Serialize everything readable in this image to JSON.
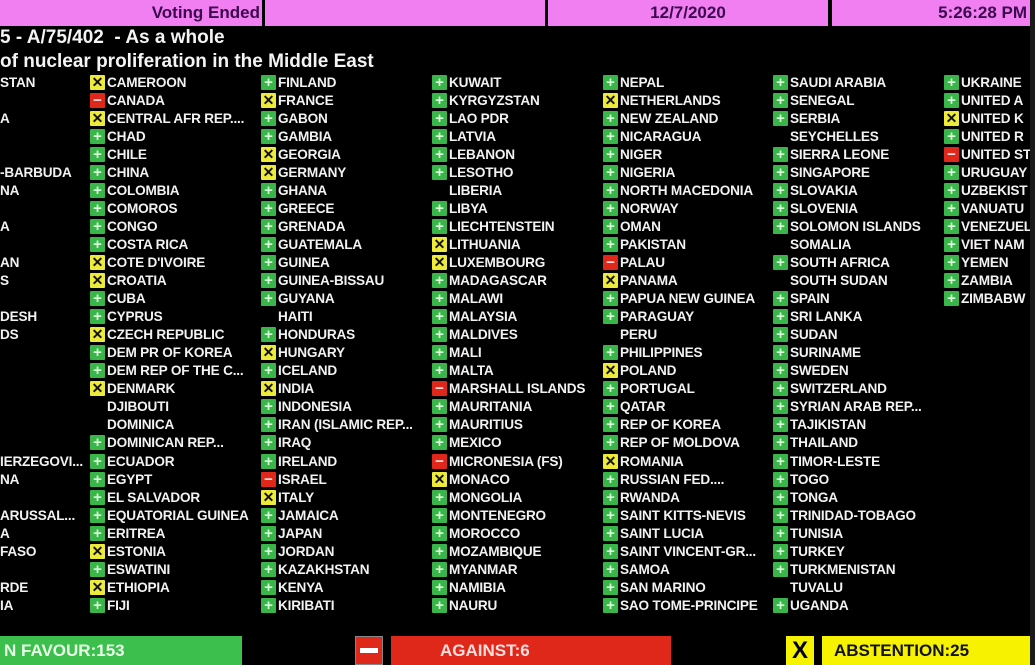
{
  "header": {
    "status": "Voting Ended",
    "middle": "",
    "date": "12/7/2020",
    "time": "5:26:28 PM"
  },
  "title": {
    "line1": "5 - A/75/402  - As a whole",
    "line2": "of nuclear proliferation in the Middle East"
  },
  "colors": {
    "header": "#f27ff2",
    "yes": "#39b54a",
    "no": "#e0281a",
    "abstain": "#eeea3a"
  },
  "vote_icons": {
    "y": "plus-icon",
    "n": "minus-icon",
    "a": "x-icon"
  },
  "columns": [
    [
      {
        "name": "STAN",
        "vote": ""
      },
      {
        "name": "",
        "vote": ""
      },
      {
        "name": "A",
        "vote": ""
      },
      {
        "name": "",
        "vote": ""
      },
      {
        "name": "",
        "vote": ""
      },
      {
        "name": "-BARBUDA",
        "vote": ""
      },
      {
        "name": "NA",
        "vote": ""
      },
      {
        "name": "",
        "vote": ""
      },
      {
        "name": "A",
        "vote": ""
      },
      {
        "name": "",
        "vote": ""
      },
      {
        "name": "AN",
        "vote": ""
      },
      {
        "name": "S",
        "vote": ""
      },
      {
        "name": "",
        "vote": ""
      },
      {
        "name": "DESH",
        "vote": ""
      },
      {
        "name": "DS",
        "vote": ""
      },
      {
        "name": "",
        "vote": ""
      },
      {
        "name": "",
        "vote": ""
      },
      {
        "name": "",
        "vote": ""
      },
      {
        "name": "",
        "vote": ""
      },
      {
        "name": "",
        "vote": ""
      },
      {
        "name": "",
        "vote": ""
      },
      {
        "name": "IERZEGOVI...",
        "vote": ""
      },
      {
        "name": "NA",
        "vote": ""
      },
      {
        "name": "",
        "vote": ""
      },
      {
        "name": "ARUSSAL...",
        "vote": ""
      },
      {
        "name": "A",
        "vote": ""
      },
      {
        "name": "FASO",
        "vote": ""
      },
      {
        "name": "",
        "vote": ""
      },
      {
        "name": "RDE",
        "vote": ""
      },
      {
        "name": "IA",
        "vote": ""
      }
    ],
    [
      {
        "name": "CAMEROON",
        "vote": "a"
      },
      {
        "name": "CANADA",
        "vote": "n"
      },
      {
        "name": "CENTRAL AFR REP....",
        "vote": "a"
      },
      {
        "name": "CHAD",
        "vote": "y"
      },
      {
        "name": "CHILE",
        "vote": "y"
      },
      {
        "name": "CHINA",
        "vote": "y"
      },
      {
        "name": "COLOMBIA",
        "vote": "y"
      },
      {
        "name": "COMOROS",
        "vote": "y"
      },
      {
        "name": "CONGO",
        "vote": "y"
      },
      {
        "name": "COSTA RICA",
        "vote": "y"
      },
      {
        "name": "COTE D'IVOIRE",
        "vote": "a"
      },
      {
        "name": "CROATIA",
        "vote": "a"
      },
      {
        "name": "CUBA",
        "vote": "y"
      },
      {
        "name": "CYPRUS",
        "vote": "y"
      },
      {
        "name": "CZECH REPUBLIC",
        "vote": "a"
      },
      {
        "name": "DEM PR OF KOREA",
        "vote": "y"
      },
      {
        "name": "DEM REP OF THE C...",
        "vote": "y"
      },
      {
        "name": "DENMARK",
        "vote": "a"
      },
      {
        "name": "DJIBOUTI",
        "vote": ""
      },
      {
        "name": "DOMINICA",
        "vote": ""
      },
      {
        "name": "DOMINICAN REP...",
        "vote": "y"
      },
      {
        "name": "ECUADOR",
        "vote": "y"
      },
      {
        "name": "EGYPT",
        "vote": "y"
      },
      {
        "name": "EL SALVADOR",
        "vote": "y"
      },
      {
        "name": "EQUATORIAL GUINEA",
        "vote": "y"
      },
      {
        "name": "ERITREA",
        "vote": "y"
      },
      {
        "name": "ESTONIA",
        "vote": "a"
      },
      {
        "name": "ESWATINI",
        "vote": "y"
      },
      {
        "name": "ETHIOPIA",
        "vote": "a"
      },
      {
        "name": "FIJI",
        "vote": "y"
      }
    ],
    [
      {
        "name": "FINLAND",
        "vote": "y"
      },
      {
        "name": "FRANCE",
        "vote": "a"
      },
      {
        "name": "GABON",
        "vote": "y"
      },
      {
        "name": "GAMBIA",
        "vote": "y"
      },
      {
        "name": "GEORGIA",
        "vote": "a"
      },
      {
        "name": "GERMANY",
        "vote": "a"
      },
      {
        "name": "GHANA",
        "vote": "y"
      },
      {
        "name": "GREECE",
        "vote": "y"
      },
      {
        "name": "GRENADA",
        "vote": "y"
      },
      {
        "name": "GUATEMALA",
        "vote": "y"
      },
      {
        "name": "GUINEA",
        "vote": "y"
      },
      {
        "name": "GUINEA-BISSAU",
        "vote": "y"
      },
      {
        "name": "GUYANA",
        "vote": "y"
      },
      {
        "name": "HAITI",
        "vote": ""
      },
      {
        "name": "HONDURAS",
        "vote": "y"
      },
      {
        "name": "HUNGARY",
        "vote": "a"
      },
      {
        "name": "ICELAND",
        "vote": "y"
      },
      {
        "name": "INDIA",
        "vote": "a"
      },
      {
        "name": "INDONESIA",
        "vote": "y"
      },
      {
        "name": "IRAN (ISLAMIC REP...",
        "vote": "y"
      },
      {
        "name": "IRAQ",
        "vote": "y"
      },
      {
        "name": "IRELAND",
        "vote": "y"
      },
      {
        "name": "ISRAEL",
        "vote": "n"
      },
      {
        "name": "ITALY",
        "vote": "a"
      },
      {
        "name": "JAMAICA",
        "vote": "y"
      },
      {
        "name": "JAPAN",
        "vote": "y"
      },
      {
        "name": "JORDAN",
        "vote": "y"
      },
      {
        "name": "KAZAKHSTAN",
        "vote": "y"
      },
      {
        "name": "KENYA",
        "vote": "y"
      },
      {
        "name": "KIRIBATI",
        "vote": "y"
      }
    ],
    [
      {
        "name": "KUWAIT",
        "vote": "y"
      },
      {
        "name": "KYRGYZSTAN",
        "vote": "y"
      },
      {
        "name": "LAO PDR",
        "vote": "y"
      },
      {
        "name": "LATVIA",
        "vote": "y"
      },
      {
        "name": "LEBANON",
        "vote": "y"
      },
      {
        "name": "LESOTHO",
        "vote": "y"
      },
      {
        "name": "LIBERIA",
        "vote": ""
      },
      {
        "name": "LIBYA",
        "vote": "y"
      },
      {
        "name": "LIECHTENSTEIN",
        "vote": "y"
      },
      {
        "name": "LITHUANIA",
        "vote": "a"
      },
      {
        "name": "LUXEMBOURG",
        "vote": "a"
      },
      {
        "name": "MADAGASCAR",
        "vote": "y"
      },
      {
        "name": "MALAWI",
        "vote": "y"
      },
      {
        "name": "MALAYSIA",
        "vote": "y"
      },
      {
        "name": "MALDIVES",
        "vote": "y"
      },
      {
        "name": "MALI",
        "vote": "y"
      },
      {
        "name": "MALTA",
        "vote": "y"
      },
      {
        "name": "MARSHALL ISLANDS",
        "vote": "n"
      },
      {
        "name": "MAURITANIA",
        "vote": "y"
      },
      {
        "name": "MAURITIUS",
        "vote": "y"
      },
      {
        "name": "MEXICO",
        "vote": "y"
      },
      {
        "name": "MICRONESIA (FS)",
        "vote": "n"
      },
      {
        "name": "MONACO",
        "vote": "a"
      },
      {
        "name": "MONGOLIA",
        "vote": "y"
      },
      {
        "name": "MONTENEGRO",
        "vote": "y"
      },
      {
        "name": "MOROCCO",
        "vote": "y"
      },
      {
        "name": "MOZAMBIQUE",
        "vote": "y"
      },
      {
        "name": "MYANMAR",
        "vote": "y"
      },
      {
        "name": "NAMIBIA",
        "vote": "y"
      },
      {
        "name": "NAURU",
        "vote": "y"
      }
    ],
    [
      {
        "name": "NEPAL",
        "vote": "y"
      },
      {
        "name": "NETHERLANDS",
        "vote": "a"
      },
      {
        "name": "NEW ZEALAND",
        "vote": "y"
      },
      {
        "name": "NICARAGUA",
        "vote": "y"
      },
      {
        "name": "NIGER",
        "vote": "y"
      },
      {
        "name": "NIGERIA",
        "vote": "y"
      },
      {
        "name": "NORTH MACEDONIA",
        "vote": "y"
      },
      {
        "name": "NORWAY",
        "vote": "y"
      },
      {
        "name": "OMAN",
        "vote": "y"
      },
      {
        "name": "PAKISTAN",
        "vote": "y"
      },
      {
        "name": "PALAU",
        "vote": "n"
      },
      {
        "name": "PANAMA",
        "vote": "a"
      },
      {
        "name": "PAPUA NEW GUINEA",
        "vote": "y"
      },
      {
        "name": "PARAGUAY",
        "vote": "y"
      },
      {
        "name": "PERU",
        "vote": ""
      },
      {
        "name": "PHILIPPINES",
        "vote": "y"
      },
      {
        "name": "POLAND",
        "vote": "a"
      },
      {
        "name": "PORTUGAL",
        "vote": "y"
      },
      {
        "name": "QATAR",
        "vote": "y"
      },
      {
        "name": "REP OF KOREA",
        "vote": "y"
      },
      {
        "name": "REP OF MOLDOVA",
        "vote": "y"
      },
      {
        "name": "ROMANIA",
        "vote": "a"
      },
      {
        "name": "RUSSIAN FED....",
        "vote": "y"
      },
      {
        "name": "RWANDA",
        "vote": "y"
      },
      {
        "name": "SAINT KITTS-NEVIS",
        "vote": "y"
      },
      {
        "name": "SAINT LUCIA",
        "vote": "y"
      },
      {
        "name": "SAINT VINCENT-GR...",
        "vote": "y"
      },
      {
        "name": "SAMOA",
        "vote": "y"
      },
      {
        "name": "SAN MARINO",
        "vote": "y"
      },
      {
        "name": "SAO TOME-PRINCIPE",
        "vote": "y"
      }
    ],
    [
      {
        "name": "SAUDI ARABIA",
        "vote": "y"
      },
      {
        "name": "SENEGAL",
        "vote": "y"
      },
      {
        "name": "SERBIA",
        "vote": "y"
      },
      {
        "name": "SEYCHELLES",
        "vote": ""
      },
      {
        "name": "SIERRA LEONE",
        "vote": "y"
      },
      {
        "name": "SINGAPORE",
        "vote": "y"
      },
      {
        "name": "SLOVAKIA",
        "vote": "y"
      },
      {
        "name": "SLOVENIA",
        "vote": "y"
      },
      {
        "name": "SOLOMON ISLANDS",
        "vote": "y"
      },
      {
        "name": "SOMALIA",
        "vote": ""
      },
      {
        "name": "SOUTH AFRICA",
        "vote": "y"
      },
      {
        "name": "SOUTH SUDAN",
        "vote": ""
      },
      {
        "name": "SPAIN",
        "vote": "y"
      },
      {
        "name": "SRI LANKA",
        "vote": "y"
      },
      {
        "name": "SUDAN",
        "vote": "y"
      },
      {
        "name": "SURINAME",
        "vote": "y"
      },
      {
        "name": "SWEDEN",
        "vote": "y"
      },
      {
        "name": "SWITZERLAND",
        "vote": "y"
      },
      {
        "name": "SYRIAN ARAB REP...",
        "vote": "y"
      },
      {
        "name": "TAJIKISTAN",
        "vote": "y"
      },
      {
        "name": "THAILAND",
        "vote": "y"
      },
      {
        "name": "TIMOR-LESTE",
        "vote": "y"
      },
      {
        "name": "TOGO",
        "vote": "y"
      },
      {
        "name": "TONGA",
        "vote": "y"
      },
      {
        "name": "TRINIDAD-TOBAGO",
        "vote": "y"
      },
      {
        "name": "TUNISIA",
        "vote": "y"
      },
      {
        "name": "TURKEY",
        "vote": "y"
      },
      {
        "name": "TURKMENISTAN",
        "vote": "y"
      },
      {
        "name": "TUVALU",
        "vote": ""
      },
      {
        "name": "UGANDA",
        "vote": "y"
      }
    ],
    [
      {
        "name": "UKRAINE",
        "vote": "y"
      },
      {
        "name": "UNITED A",
        "vote": "y"
      },
      {
        "name": "UNITED K",
        "vote": "a"
      },
      {
        "name": "UNITED R",
        "vote": "y"
      },
      {
        "name": "UNITED ST",
        "vote": "n"
      },
      {
        "name": "URUGUAY",
        "vote": "y"
      },
      {
        "name": "UZBEKIST",
        "vote": "y"
      },
      {
        "name": "VANUATU",
        "vote": "y"
      },
      {
        "name": "VENEZUEL",
        "vote": "y"
      },
      {
        "name": "VIET NAM",
        "vote": "y"
      },
      {
        "name": "YEMEN",
        "vote": "y"
      },
      {
        "name": "ZAMBIA",
        "vote": "y"
      },
      {
        "name": "ZIMBABW",
        "vote": "y"
      }
    ]
  ],
  "totals": {
    "favour": "N FAVOUR:153",
    "against": "AGAINST:6",
    "abstention": "ABSTENTION:25",
    "abstain_icon": "X"
  }
}
